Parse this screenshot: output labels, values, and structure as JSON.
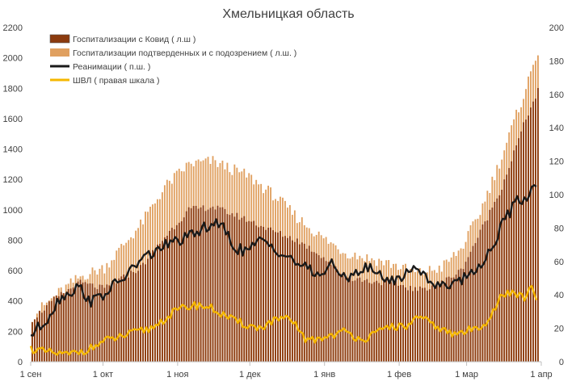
{
  "chart_data": {
    "type": "bar",
    "title": "Хмельницкая область",
    "x_ticks": [
      "1 сен",
      "1 окт",
      "1 ноя",
      "1 дек",
      "1 янв",
      "1 фев",
      "1 мар",
      "1 апр"
    ],
    "left_ylim": [
      0,
      2200
    ],
    "left_ticks": [
      0,
      200,
      400,
      600,
      800,
      1000,
      1200,
      1400,
      1600,
      1800,
      2000,
      2200
    ],
    "right_ylim": [
      0,
      200
    ],
    "right_ticks": [
      0,
      20,
      40,
      60,
      80,
      100,
      120,
      140,
      160,
      180,
      200
    ],
    "grid": false,
    "legend_position": "top-left",
    "series": [
      {
        "name": "Госпитализации с Ковид ( л.ш )",
        "kind": "bar",
        "axis": "left",
        "color": "#8B3A0E",
        "keyframes": [
          [
            0,
            280
          ],
          [
            10,
            420
          ],
          [
            20,
            520
          ],
          [
            30,
            480
          ],
          [
            45,
            620
          ],
          [
            55,
            820
          ],
          [
            65,
            1000
          ],
          [
            75,
            1020
          ],
          [
            90,
            930
          ],
          [
            100,
            860
          ],
          [
            110,
            800
          ],
          [
            120,
            700
          ],
          [
            130,
            560
          ],
          [
            140,
            530
          ],
          [
            150,
            520
          ],
          [
            160,
            470
          ],
          [
            170,
            520
          ],
          [
            178,
            600
          ],
          [
            185,
            820
          ],
          [
            195,
            1150
          ],
          [
            205,
            1600
          ],
          [
            210,
            1780
          ]
        ]
      },
      {
        "name": "Госпитализации подтверденных и с подозрением ( л.ш. )",
        "kind": "bar",
        "axis": "left",
        "color": "#E0A060",
        "keyframes": [
          [
            0,
            300
          ],
          [
            10,
            440
          ],
          [
            20,
            560
          ],
          [
            30,
            620
          ],
          [
            45,
            900
          ],
          [
            55,
            1150
          ],
          [
            65,
            1300
          ],
          [
            75,
            1320
          ],
          [
            90,
            1220
          ],
          [
            100,
            1100
          ],
          [
            110,
            950
          ],
          [
            120,
            820
          ],
          [
            130,
            720
          ],
          [
            140,
            680
          ],
          [
            150,
            640
          ],
          [
            160,
            580
          ],
          [
            170,
            620
          ],
          [
            178,
            740
          ],
          [
            185,
            950
          ],
          [
            195,
            1350
          ],
          [
            205,
            1800
          ],
          [
            210,
            2050
          ]
        ]
      },
      {
        "name": "Реанимации ( п.ш. )",
        "kind": "line",
        "axis": "right",
        "color": "#1a1a1a",
        "keyframes": [
          [
            0,
            16
          ],
          [
            6,
            24
          ],
          [
            12,
            38
          ],
          [
            20,
            45
          ],
          [
            25,
            36
          ],
          [
            30,
            40
          ],
          [
            40,
            52
          ],
          [
            45,
            60
          ],
          [
            55,
            69
          ],
          [
            60,
            72
          ],
          [
            65,
            74
          ],
          [
            70,
            78
          ],
          [
            75,
            83
          ],
          [
            80,
            80
          ],
          [
            85,
            68
          ],
          [
            90,
            66
          ],
          [
            95,
            72
          ],
          [
            100,
            70
          ],
          [
            105,
            64
          ],
          [
            110,
            60
          ],
          [
            115,
            55
          ],
          [
            120,
            52
          ],
          [
            125,
            58
          ],
          [
            130,
            50
          ],
          [
            135,
            54
          ],
          [
            140,
            56
          ],
          [
            145,
            52
          ],
          [
            150,
            48
          ],
          [
            155,
            52
          ],
          [
            160,
            57
          ],
          [
            165,
            50
          ],
          [
            170,
            44
          ],
          [
            175,
            48
          ],
          [
            180,
            50
          ],
          [
            185,
            56
          ],
          [
            190,
            64
          ],
          [
            195,
            80
          ],
          [
            200,
            92
          ],
          [
            203,
            98
          ],
          [
            206,
            96
          ],
          [
            208,
            103
          ],
          [
            210,
            108
          ]
        ]
      },
      {
        "name": "ШВЛ ( правая шкала )",
        "kind": "line",
        "axis": "right",
        "color": "#F5B700",
        "keyframes": [
          [
            0,
            8
          ],
          [
            5,
            6
          ],
          [
            10,
            5
          ],
          [
            15,
            4
          ],
          [
            20,
            6
          ],
          [
            25,
            8
          ],
          [
            30,
            12
          ],
          [
            40,
            16
          ],
          [
            50,
            20
          ],
          [
            60,
            30
          ],
          [
            65,
            33
          ],
          [
            70,
            34
          ],
          [
            75,
            32
          ],
          [
            80,
            28
          ],
          [
            85,
            24
          ],
          [
            90,
            22
          ],
          [
            95,
            20
          ],
          [
            100,
            24
          ],
          [
            105,
            26
          ],
          [
            110,
            22
          ],
          [
            115,
            12
          ],
          [
            120,
            14
          ],
          [
            125,
            16
          ],
          [
            130,
            18
          ],
          [
            135,
            15
          ],
          [
            140,
            14
          ],
          [
            145,
            18
          ],
          [
            150,
            22
          ],
          [
            155,
            20
          ],
          [
            160,
            26
          ],
          [
            165,
            24
          ],
          [
            170,
            20
          ],
          [
            175,
            16
          ],
          [
            180,
            18
          ],
          [
            185,
            20
          ],
          [
            190,
            25
          ],
          [
            195,
            38
          ],
          [
            200,
            42
          ],
          [
            205,
            38
          ],
          [
            208,
            44
          ],
          [
            210,
            36
          ]
        ]
      }
    ]
  }
}
